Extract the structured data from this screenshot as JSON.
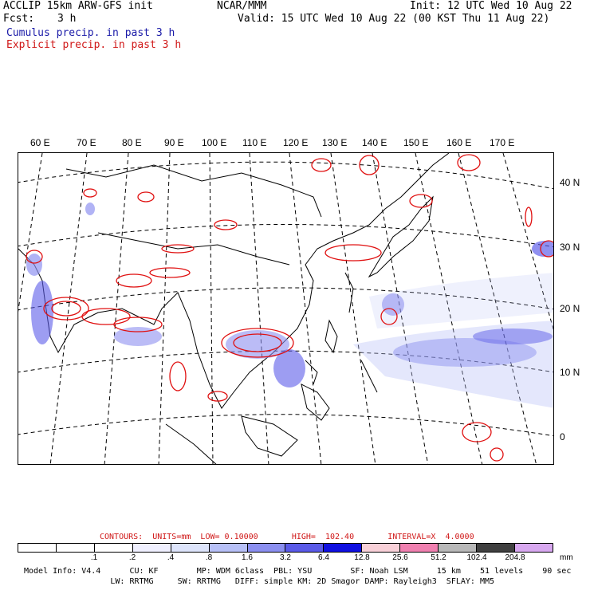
{
  "header": {
    "model_line": "ACCLIP 15km ARW-GFS init",
    "fcst_label": "Fcst:",
    "fcst_value": "3 h",
    "center": "NCAR/MMM",
    "init": "Init: 12 UTC Wed 10 Aug 22",
    "valid": "Valid: 15 UTC Wed 10 Aug 22 (00 KST Thu 11 Aug 22)",
    "cumulus_legend": "Cumulus precip. in past 3 h",
    "explicit_legend": "Explicit precip. in past 3 h"
  },
  "lon_labels": [
    "60 E",
    "70 E",
    "80 E",
    "90 E",
    "100 E",
    "110 E",
    "120 E",
    "130 E",
    "140 E",
    "150 E",
    "160 E",
    "170 E"
  ],
  "lat_labels": [
    "40 N",
    "30 N",
    "20 N",
    "10 N",
    "0"
  ],
  "contours_text": "CONTOURS:  UNITS=mm  LOW= 0.10000       HIGH=  102.40       INTERVAL=X  4.0000",
  "colorbar": {
    "labels": [
      ".1",
      ".2",
      ".4",
      ".8",
      "1.6",
      "3.2",
      "6.4",
      "12.8",
      "25.6",
      "51.2",
      "102.4",
      "204.8"
    ],
    "unit": "mm",
    "colors": [
      "#ffffff",
      "#ffffff",
      "#ffffff",
      "#f0f0ff",
      "#dde4fb",
      "#b7c0f7",
      "#8b8ff0",
      "#5a5ae8",
      "#1010e0",
      "#f8d0d8",
      "#f080b0",
      "#b8b8b8",
      "#404040",
      "#d8a8f0"
    ]
  },
  "footer": {
    "line1": "Model Info: V4.4      CU: KF        MP: WDM 6class  PBL: YSU        SF: Noah LSM      15 km    51 levels    90 sec",
    "line2": "                  LW: RRTMG     SW: RRTMG   DIFF: simple KM: 2D Smagor DAMP: Rayleigh3  SFLAY: MM5"
  }
}
